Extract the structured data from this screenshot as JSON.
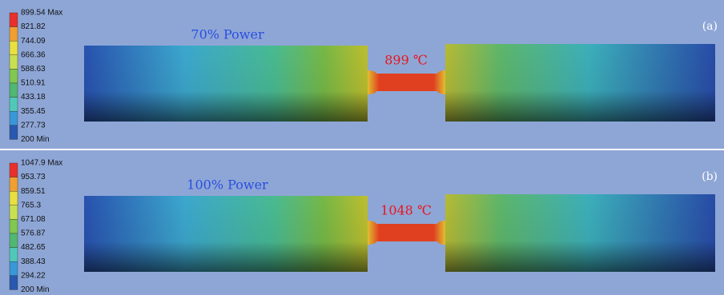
{
  "panels": [
    {
      "label": "(a)",
      "power": "70% Power",
      "temperature": "899 ℃",
      "legend": [
        "899.54 Max",
        "821.82",
        "744.09",
        "666.36",
        "588.63",
        "510.91",
        "433.18",
        "355.45",
        "277.73",
        "200 Min"
      ]
    },
    {
      "label": "(b)",
      "power": "100% Power",
      "temperature": "1048 ℃",
      "legend": [
        "1047.9 Max",
        "953.73",
        "859.51",
        "765.3",
        "671.08",
        "576.87",
        "482.65",
        "388.43",
        "294.22",
        "200 Min"
      ]
    }
  ]
}
